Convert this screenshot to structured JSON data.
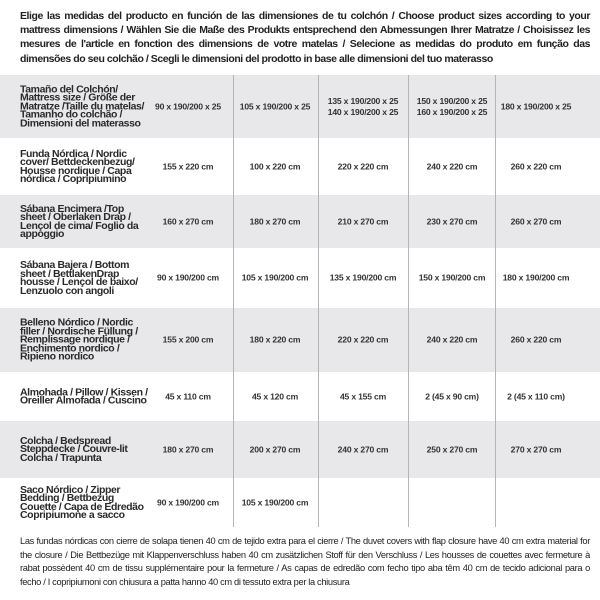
{
  "intro": "Elige las medidas del producto en función de las dimensiones de tu colchón / Choose product sizes according to your mattress dimensions / Wählen Sie die Maße des Produkts entsprechend den Abmessungen Ihrer Matratze / Choisissez les mesures de l'article en fonction des dimensions de votre matelas / Selecione as medidas do produto em função das dimensões do seu colchão / Scegli le dimensioni del prodotto in base alle dimensioni del tuo materasso",
  "table": {
    "header": {
      "label": "Tamaño del Colchón/ Mattress size / Größe der Matratze /Taille du matelas/ Tamanho do colchão / Dimensioni del materasso",
      "cells": [
        "90 x 190/200 x 25",
        "105 x 190/200 x 25",
        "135 x 190/200 x 25\n140 x 190/200 x 25",
        "150 x 190/200 x 25\n160 x 190/200 x 25",
        "180 x 190/200 x 25"
      ]
    },
    "rows": [
      {
        "label": "Funda Nórdica /  Nordic cover/ Bettdeckenbezug/ Housse nordique  / Capa nórdica / Copripiumino",
        "cells": [
          "155 x 220 cm",
          "100 x 220 cm",
          "220 x 220 cm",
          "240 x 220 cm",
          "260 x 220 cm"
        ]
      },
      {
        "label": "Sábana Encimera /Top sheet / Oberlaken Drap / Lençol de cima/ Foglio da appoggio",
        "cells": [
          "160 x 270 cm",
          "180 x 270 cm",
          "210 x 270 cm",
          "230 x 270 cm",
          "260 x 270 cm"
        ]
      },
      {
        "label": "Sábana Bajera / Bottom sheet / BettlakenDrap housse / Lençol de baixo/ Lenzuolo con angoli",
        "cells": [
          "90 x 190/200 cm",
          "105 x 190/200 cm",
          "135 x 190/200 cm",
          "150 x 190/200 cm",
          "180 x 190/200 cm"
        ]
      },
      {
        "label": "Belleno Nórdico / Nordic filler / Nordische Füllung / Remplissage nordique / Enchimento nordico / Ripieno nordico",
        "cells": [
          "155 x 200 cm",
          "180 x 220 cm",
          "220 x 220 cm",
          "240 x 220 cm",
          "260 x 220 cm"
        ]
      },
      {
        "label": "Almohada  / Pillow / Kissen / Oreiller Almofada / Cuscino",
        "cells": [
          "45 x 110 cm",
          "45 x 120 cm",
          "45 x 155 cm",
          "2 (45 x 90 cm)",
          "2 (45 x 110 cm)"
        ]
      },
      {
        "label": "Colcha / Bedspread Steppdecke / Couvre-lit Colcha / Trapunta",
        "cells": [
          "180 x 270 cm",
          "200 x 270 cm",
          "240 x 270 cm",
          "250 x 270 cm",
          "270 x 270 cm"
        ]
      },
      {
        "label": "Saco Nórdico / Zipper Bedding / Bettbezug Couette  / Capa de Edredão Copripiumone a sacco",
        "cells": [
          "90 x 190/200 cm",
          "105 x 190/200 cm",
          "",
          "",
          ""
        ]
      }
    ]
  },
  "footer": "Las fundas nórdicas con cierre de solapa tienen 40 cm de tejido extra para el cierre  / The duvet covers with flap closure have 40 cm extra material for the closure / Die Bettbezüge mit Klappenverschluss haben 40 cm zusätzlichen Stoff für den Verschluss / Les housses de couettes avec fermeture à rabat possèdent 40 cm de tissu supplémentaire pour la fermeture / As capas de edredão com fecho tipo aba têm 40 cm de tecido adicional para o fecho / I copripiumoni con chiusura a patta hanno 40 cm di tessuto extra per la chiusura",
  "colors": {
    "row_alt": "#e8e8ea",
    "divider": "#b5b5b5"
  }
}
